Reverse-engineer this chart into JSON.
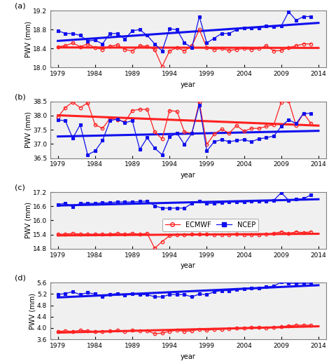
{
  "years": [
    1979,
    1980,
    1981,
    1982,
    1983,
    1984,
    1985,
    1986,
    1987,
    1988,
    1989,
    1990,
    1991,
    1992,
    1993,
    1994,
    1995,
    1996,
    1997,
    1998,
    1999,
    2000,
    2001,
    2002,
    2003,
    2004,
    2005,
    2006,
    2007,
    2008,
    2009,
    2010,
    2011,
    2012,
    2013
  ],
  "a_ecmwf": [
    18.44,
    18.46,
    18.52,
    18.44,
    18.5,
    18.42,
    18.38,
    18.45,
    18.48,
    18.38,
    18.35,
    18.46,
    18.45,
    18.38,
    18.02,
    18.35,
    18.42,
    18.35,
    18.46,
    18.8,
    18.42,
    18.38,
    18.4,
    18.36,
    18.38,
    18.4,
    18.38,
    18.4,
    18.46,
    18.35,
    18.36,
    18.42,
    18.46,
    18.5,
    18.5
  ],
  "a_ncep": [
    18.78,
    18.72,
    18.72,
    18.68,
    18.56,
    18.58,
    18.5,
    18.72,
    18.72,
    18.6,
    18.78,
    18.8,
    18.68,
    18.5,
    18.35,
    18.82,
    18.8,
    18.52,
    18.42,
    19.08,
    18.52,
    18.62,
    18.72,
    18.72,
    18.8,
    18.84,
    18.84,
    18.84,
    18.88,
    18.86,
    18.88,
    19.18,
    19.0,
    19.08,
    19.08
  ],
  "b_ecmwf": [
    37.95,
    38.28,
    38.48,
    38.28,
    38.45,
    37.68,
    37.55,
    37.9,
    37.85,
    37.78,
    38.18,
    38.22,
    38.22,
    37.42,
    37.18,
    38.18,
    38.15,
    37.42,
    37.38,
    38.48,
    36.98,
    37.35,
    37.52,
    37.38,
    37.65,
    37.45,
    37.55,
    37.55,
    37.62,
    37.68,
    38.48,
    38.52,
    37.65,
    38.08,
    37.72
  ],
  "b_ncep": [
    37.85,
    37.82,
    37.2,
    37.68,
    36.62,
    36.75,
    37.12,
    37.82,
    37.88,
    37.75,
    37.82,
    36.8,
    37.22,
    36.85,
    36.62,
    37.25,
    37.38,
    36.98,
    37.38,
    38.38,
    36.75,
    37.08,
    37.15,
    37.08,
    37.12,
    37.15,
    37.08,
    37.18,
    37.22,
    37.28,
    37.62,
    37.85,
    37.72,
    38.08,
    38.08
  ],
  "c_ecmwf": [
    15.42,
    15.42,
    15.45,
    15.42,
    15.42,
    15.42,
    15.42,
    15.42,
    15.45,
    15.42,
    15.45,
    15.42,
    15.45,
    14.82,
    15.1,
    15.35,
    15.38,
    15.38,
    15.42,
    15.42,
    15.42,
    15.38,
    15.38,
    15.38,
    15.42,
    15.38,
    15.38,
    15.38,
    15.42,
    15.45,
    15.52,
    15.45,
    15.52,
    15.48,
    15.52
  ],
  "c_ncep": [
    16.68,
    16.72,
    16.58,
    16.72,
    16.72,
    16.72,
    16.75,
    16.75,
    16.78,
    16.78,
    16.78,
    16.8,
    16.82,
    16.62,
    16.52,
    16.52,
    16.52,
    16.52,
    16.72,
    16.82,
    16.72,
    16.72,
    16.75,
    16.78,
    16.78,
    16.78,
    16.8,
    16.82,
    16.82,
    16.85,
    17.18,
    16.85,
    16.9,
    16.92,
    17.08
  ],
  "d_ecmwf": [
    3.88,
    3.9,
    3.88,
    3.92,
    3.9,
    3.88,
    3.88,
    3.9,
    3.92,
    3.88,
    3.92,
    3.9,
    3.9,
    3.8,
    3.82,
    3.88,
    3.92,
    3.88,
    3.9,
    3.95,
    3.92,
    3.95,
    3.95,
    3.98,
    4.0,
    4.0,
    4.02,
    4.02,
    4.0,
    4.02,
    4.05,
    4.08,
    4.1,
    4.1,
    4.1
  ],
  "d_ncep": [
    5.18,
    5.22,
    5.28,
    5.18,
    5.25,
    5.2,
    5.1,
    5.18,
    5.22,
    5.15,
    5.22,
    5.18,
    5.18,
    5.1,
    5.1,
    5.18,
    5.18,
    5.18,
    5.1,
    5.2,
    5.18,
    5.28,
    5.32,
    5.32,
    5.35,
    5.38,
    5.42,
    5.42,
    5.45,
    5.48,
    5.62,
    5.58,
    5.58,
    5.58,
    5.58
  ],
  "ecmwf_color": "#FF2020",
  "ncep_color": "#1010EE",
  "a_ylim": [
    18.0,
    19.2
  ],
  "a_yticks": [
    18.0,
    18.4,
    18.8,
    19.2
  ],
  "b_ylim": [
    36.5,
    38.5
  ],
  "b_yticks": [
    36.5,
    37.0,
    37.5,
    38.0,
    38.5
  ],
  "c_ylim": [
    14.8,
    17.2
  ],
  "c_yticks": [
    14.8,
    15.4,
    16.0,
    16.6,
    17.2
  ],
  "d_ylim": [
    3.6,
    5.6
  ],
  "d_yticks": [
    3.6,
    4.0,
    4.4,
    4.8,
    5.2,
    5.6
  ],
  "xlim": [
    1978,
    2015
  ],
  "xticks": [
    1979,
    1984,
    1989,
    1994,
    1999,
    2004,
    2009,
    2014
  ],
  "xlabel": "year",
  "ylabel": "PWV (mm)",
  "panel_labels": [
    "(a)",
    "(b)",
    "(c)",
    "(d)"
  ],
  "legend_ecmwf": "ECMWF",
  "legend_ncep": "NCEP",
  "bg_color": "#F0F0F0"
}
